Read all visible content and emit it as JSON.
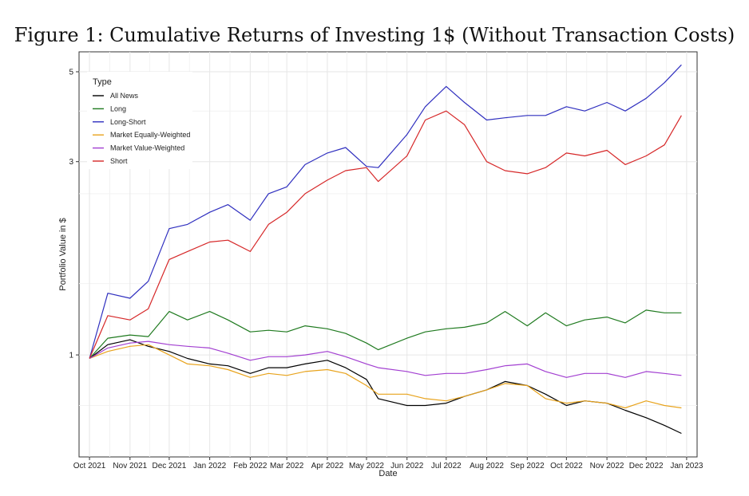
{
  "figure": {
    "title": "Figure 1: Cumulative Returns of Investing 1$ (Without Transaction Costs)"
  },
  "chart_data": {
    "type": "line",
    "xlabel": "Date",
    "ylabel": "Portfolio Value in $",
    "x_ticks": [
      "Oct 2021",
      "Nov 2021",
      "Dec 2021",
      "Jan 2022",
      "Feb 2022",
      "Mar 2022",
      "Apr 2022",
      "May 2022",
      "Jun 2022",
      "Jul 2022",
      "Aug 2022",
      "Sep 2022",
      "Oct 2022",
      "Nov 2022",
      "Dec 2022",
      "Jan 2023"
    ],
    "y_ticks": [
      1,
      3,
      5
    ],
    "y_scale": "log",
    "xlim": [
      "2021-09-23",
      "2023-01-09"
    ],
    "ylim": [
      0.56,
      5.6
    ],
    "grid": true,
    "legend": {
      "title": "Type",
      "position": "top-left"
    },
    "series": [
      {
        "name": "All News",
        "color": "#000000",
        "x": [
          "2021-10-01",
          "2021-10-15",
          "2021-11-01",
          "2021-11-15",
          "2021-12-01",
          "2021-12-15",
          "2022-01-01",
          "2022-01-15",
          "2022-02-01",
          "2022-02-15",
          "2022-03-01",
          "2022-03-15",
          "2022-04-01",
          "2022-04-15",
          "2022-05-01",
          "2022-05-10",
          "2022-06-01",
          "2022-06-15",
          "2022-07-01",
          "2022-07-15",
          "2022-08-01",
          "2022-08-15",
          "2022-09-01",
          "2022-09-15",
          "2022-10-01",
          "2022-10-15",
          "2022-11-01",
          "2022-11-15",
          "2022-12-01",
          "2022-12-15",
          "2022-12-28"
        ],
        "y": [
          0.98,
          1.06,
          1.09,
          1.05,
          1.02,
          0.98,
          0.95,
          0.94,
          0.9,
          0.93,
          0.93,
          0.95,
          0.97,
          0.93,
          0.87,
          0.78,
          0.75,
          0.75,
          0.76,
          0.79,
          0.82,
          0.86,
          0.84,
          0.8,
          0.75,
          0.77,
          0.76,
          0.73,
          0.7,
          0.67,
          0.64
        ]
      },
      {
        "name": "Long",
        "color": "#1f7a1f",
        "x": [
          "2021-10-01",
          "2021-10-15",
          "2021-11-01",
          "2021-11-15",
          "2021-12-01",
          "2021-12-15",
          "2022-01-01",
          "2022-01-15",
          "2022-02-01",
          "2022-02-15",
          "2022-03-01",
          "2022-03-15",
          "2022-04-01",
          "2022-04-15",
          "2022-05-01",
          "2022-05-10",
          "2022-06-01",
          "2022-06-15",
          "2022-07-01",
          "2022-07-15",
          "2022-08-01",
          "2022-08-15",
          "2022-09-01",
          "2022-09-15",
          "2022-10-01",
          "2022-10-15",
          "2022-11-01",
          "2022-11-15",
          "2022-12-01",
          "2022-12-15",
          "2022-12-28"
        ],
        "y": [
          0.98,
          1.1,
          1.12,
          1.11,
          1.28,
          1.22,
          1.28,
          1.22,
          1.14,
          1.15,
          1.14,
          1.18,
          1.16,
          1.13,
          1.07,
          1.03,
          1.1,
          1.14,
          1.16,
          1.17,
          1.2,
          1.28,
          1.18,
          1.27,
          1.18,
          1.22,
          1.24,
          1.2,
          1.29,
          1.27,
          1.27
        ]
      },
      {
        "name": "Long-Short",
        "color": "#2f2fbf",
        "x": [
          "2021-10-01",
          "2021-10-15",
          "2021-11-01",
          "2021-11-15",
          "2021-12-01",
          "2021-12-15",
          "2022-01-01",
          "2022-01-15",
          "2022-02-01",
          "2022-02-15",
          "2022-03-01",
          "2022-03-15",
          "2022-04-01",
          "2022-04-15",
          "2022-05-01",
          "2022-05-10",
          "2022-06-01",
          "2022-06-15",
          "2022-07-01",
          "2022-07-15",
          "2022-08-01",
          "2022-08-15",
          "2022-09-01",
          "2022-09-15",
          "2022-10-01",
          "2022-10-15",
          "2022-11-01",
          "2022-11-15",
          "2022-12-01",
          "2022-12-15",
          "2022-12-28"
        ],
        "y": [
          0.98,
          1.42,
          1.38,
          1.52,
          2.05,
          2.1,
          2.25,
          2.35,
          2.15,
          2.5,
          2.6,
          2.95,
          3.15,
          3.25,
          2.92,
          2.9,
          3.5,
          4.1,
          4.6,
          4.2,
          3.8,
          3.85,
          3.9,
          3.9,
          4.1,
          4.0,
          4.2,
          4.0,
          4.3,
          4.7,
          5.2
        ]
      },
      {
        "name": "Market Equally-Weighted",
        "color": "#e8a31c",
        "x": [
          "2021-10-01",
          "2021-10-15",
          "2021-11-01",
          "2021-11-15",
          "2021-12-01",
          "2021-12-15",
          "2022-01-01",
          "2022-01-15",
          "2022-02-01",
          "2022-02-15",
          "2022-03-01",
          "2022-03-15",
          "2022-04-01",
          "2022-04-15",
          "2022-05-01",
          "2022-05-10",
          "2022-06-01",
          "2022-06-15",
          "2022-07-01",
          "2022-07-15",
          "2022-08-01",
          "2022-08-15",
          "2022-09-01",
          "2022-09-15",
          "2022-10-01",
          "2022-10-15",
          "2022-11-01",
          "2022-11-15",
          "2022-12-01",
          "2022-12-15",
          "2022-12-28"
        ],
        "y": [
          0.98,
          1.02,
          1.05,
          1.06,
          1.0,
          0.95,
          0.94,
          0.92,
          0.88,
          0.9,
          0.89,
          0.91,
          0.92,
          0.9,
          0.84,
          0.8,
          0.8,
          0.78,
          0.77,
          0.79,
          0.82,
          0.85,
          0.84,
          0.78,
          0.76,
          0.77,
          0.76,
          0.74,
          0.77,
          0.75,
          0.74
        ]
      },
      {
        "name": "Market Value-Weighted",
        "color": "#a23fd1",
        "x": [
          "2021-10-01",
          "2021-10-15",
          "2021-11-01",
          "2021-11-15",
          "2021-12-01",
          "2021-12-15",
          "2022-01-01",
          "2022-01-15",
          "2022-02-01",
          "2022-02-15",
          "2022-03-01",
          "2022-03-15",
          "2022-04-01",
          "2022-04-15",
          "2022-05-01",
          "2022-05-10",
          "2022-06-01",
          "2022-06-15",
          "2022-07-01",
          "2022-07-15",
          "2022-08-01",
          "2022-08-15",
          "2022-09-01",
          "2022-09-15",
          "2022-10-01",
          "2022-10-15",
          "2022-11-01",
          "2022-11-15",
          "2022-12-01",
          "2022-12-15",
          "2022-12-28"
        ],
        "y": [
          0.98,
          1.04,
          1.07,
          1.08,
          1.06,
          1.05,
          1.04,
          1.01,
          0.97,
          0.99,
          0.99,
          1.0,
          1.02,
          0.99,
          0.95,
          0.93,
          0.91,
          0.89,
          0.9,
          0.9,
          0.92,
          0.94,
          0.95,
          0.91,
          0.88,
          0.9,
          0.9,
          0.88,
          0.91,
          0.9,
          0.89
        ]
      },
      {
        "name": "Short",
        "color": "#d62728",
        "x": [
          "2021-10-01",
          "2021-10-15",
          "2021-11-01",
          "2021-11-15",
          "2021-12-01",
          "2021-12-15",
          "2022-01-01",
          "2022-01-15",
          "2022-02-01",
          "2022-02-15",
          "2022-03-01",
          "2022-03-15",
          "2022-04-01",
          "2022-04-15",
          "2022-05-01",
          "2022-05-10",
          "2022-06-01",
          "2022-06-15",
          "2022-07-01",
          "2022-07-15",
          "2022-08-01",
          "2022-08-15",
          "2022-09-01",
          "2022-09-15",
          "2022-10-01",
          "2022-10-15",
          "2022-11-01",
          "2022-11-15",
          "2022-12-01",
          "2022-12-15",
          "2022-12-28"
        ],
        "y": [
          0.98,
          1.25,
          1.22,
          1.3,
          1.72,
          1.8,
          1.9,
          1.92,
          1.8,
          2.1,
          2.25,
          2.5,
          2.7,
          2.85,
          2.9,
          2.68,
          3.1,
          3.8,
          4.0,
          3.7,
          3.0,
          2.85,
          2.8,
          2.9,
          3.15,
          3.1,
          3.2,
          2.95,
          3.1,
          3.3,
          3.9
        ]
      }
    ]
  }
}
